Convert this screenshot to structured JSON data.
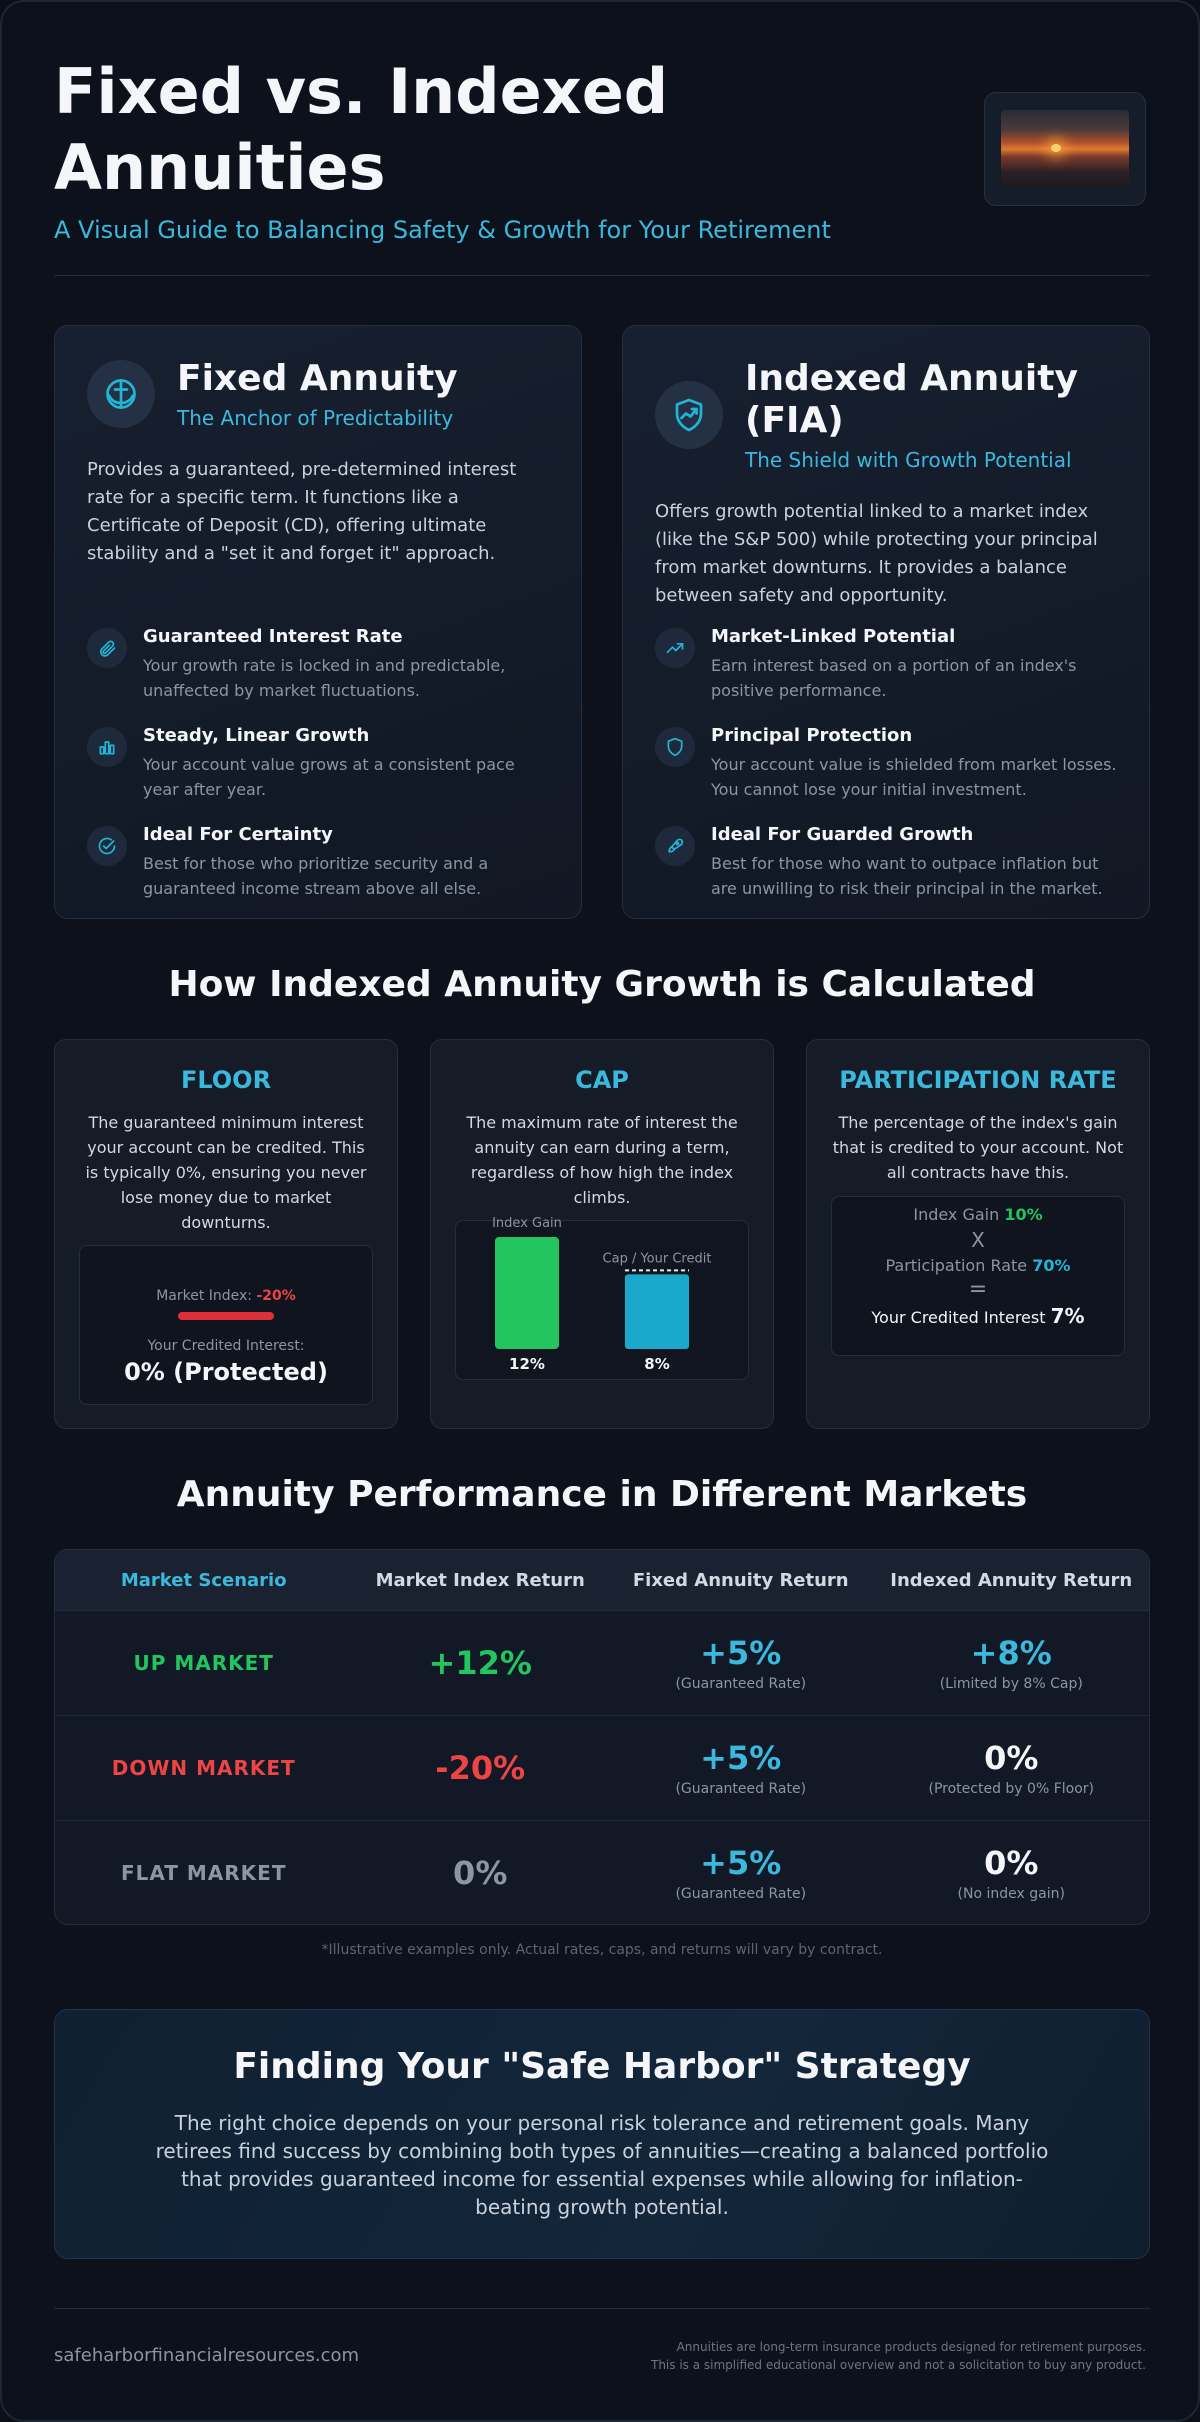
{
  "header": {
    "title": "Fixed vs. Indexed Annuities",
    "subtitle": "A Visual Guide to Balancing Safety & Growth for Your Retirement"
  },
  "fixed": {
    "title": "Fixed Annuity",
    "tagline": "The Anchor of Predictability",
    "description": "Provides a guaranteed, pre-determined interest rate for a specific term. It functions like a Certificate of Deposit (CD), offering ultimate stability and a \"set it and forget it\" approach.",
    "features": [
      {
        "title": "Guaranteed Interest Rate",
        "text": "Your growth rate is locked in and predictable, unaffected by market fluctuations.",
        "icon": "paperclip-icon"
      },
      {
        "title": "Steady, Linear Growth",
        "text": "Your account value grows at a consistent pace year after year.",
        "icon": "bar-chart-icon"
      },
      {
        "title": "Ideal For Certainty",
        "text": "Best for those who prioritize security and a guaranteed income stream above all else.",
        "icon": "check-circle-icon"
      }
    ]
  },
  "indexed": {
    "title": "Indexed Annuity (FIA)",
    "tagline": "The Shield with Growth Potential",
    "description": "Offers growth potential linked to a market index (like the S&P 500) while protecting your principal from market downturns. It provides a balance between safety and opportunity.",
    "features": [
      {
        "title": "Market-Linked Potential",
        "text": "Earn interest based on a portion of an index's positive performance.",
        "icon": "trending-up-icon"
      },
      {
        "title": "Principal Protection",
        "text": "Your account value is shielded from market losses. You cannot lose your initial investment.",
        "icon": "shield-icon"
      },
      {
        "title": "Ideal For Guarded Growth",
        "text": "Best for those who want to outpace inflation but are unwilling to risk their principal in the market.",
        "icon": "rocket-icon"
      }
    ]
  },
  "growth_section": {
    "title": "How Indexed Annuity Growth is Calculated",
    "floor": {
      "title": "FLOOR",
      "description": "The guaranteed minimum interest your account can be credited. This is typically 0%, ensuring you never lose money due to market downturns.",
      "market_label": "Market Index:",
      "market_value": "-20%",
      "credited_label": "Your Credited Interest:",
      "credited_value": "0% (Protected)"
    },
    "cap": {
      "title": "CAP",
      "description": "The maximum rate of interest the annuity can earn during a term, regardless of how high the index climbs.",
      "index_label": "Index Gain",
      "cap_label": "Cap / Your Credit",
      "index_value": 12,
      "cap_value": 8,
      "index_value_label": "12%",
      "cap_value_label": "8%"
    },
    "participation": {
      "title": "PARTICIPATION RATE",
      "description": "The percentage of the index's gain that is credited to your account. Not all contracts have this.",
      "index_gain_label": "Index Gain",
      "index_gain_value": "10%",
      "times_symbol": "X",
      "rate_label": "Participation Rate",
      "rate_value": "70%",
      "equals_symbol": "=",
      "credited_label": "Your Credited Interest",
      "credited_value": "7%"
    }
  },
  "performance": {
    "title": "Annuity Performance in Different Markets",
    "headers": [
      "Market Scenario",
      "Market Index Return",
      "Fixed Annuity Return",
      "Indexed Annuity Return"
    ],
    "rows": [
      {
        "scenario": "UP MARKET",
        "color": "#22c55e",
        "index": "+12%",
        "index_color": "#22c55e",
        "fixed": "+5%",
        "fixed_note": "(Guaranteed Rate)",
        "indexed": "+8%",
        "indexed_color": "#3bb9dd",
        "indexed_note": "(Limited by 8% Cap)"
      },
      {
        "scenario": "DOWN MARKET",
        "color": "#ef4444",
        "index": "-20%",
        "index_color": "#ef4444",
        "fixed": "+5%",
        "fixed_note": "(Guaranteed Rate)",
        "indexed": "0%",
        "indexed_color": "#f4f6f9",
        "indexed_note": "(Protected by 0% Floor)"
      },
      {
        "scenario": "FLAT MARKET",
        "color": "#8b95a5",
        "index": "0%",
        "index_color": "#8b95a5",
        "fixed": "+5%",
        "fixed_note": "(Guaranteed Rate)",
        "indexed": "0%",
        "indexed_color": "#f4f6f9",
        "indexed_note": "(No index gain)"
      }
    ],
    "disclaimer": "*Illustrative examples only. Actual rates, caps, and returns will vary by contract."
  },
  "strategy": {
    "title": "Finding Your \"Safe Harbor\" Strategy",
    "text": "The right choice depends on your personal risk tolerance and retirement goals. Many retirees find success by combining both types of annuities—creating a balanced portfolio that provides guaranteed income for essential expenses while allowing for inflation-beating growth potential."
  },
  "footer": {
    "site": "safeharborfinancialresources.com",
    "note_line1": "Annuities are long-term insurance products designed for retirement purposes.",
    "note_line2": "This is a simplified educational overview and not a solicitation to buy any product."
  },
  "colors": {
    "accent": "#3bb9dd",
    "positive": "#22c55e",
    "negative": "#ef4444",
    "background": "#0c111b"
  }
}
